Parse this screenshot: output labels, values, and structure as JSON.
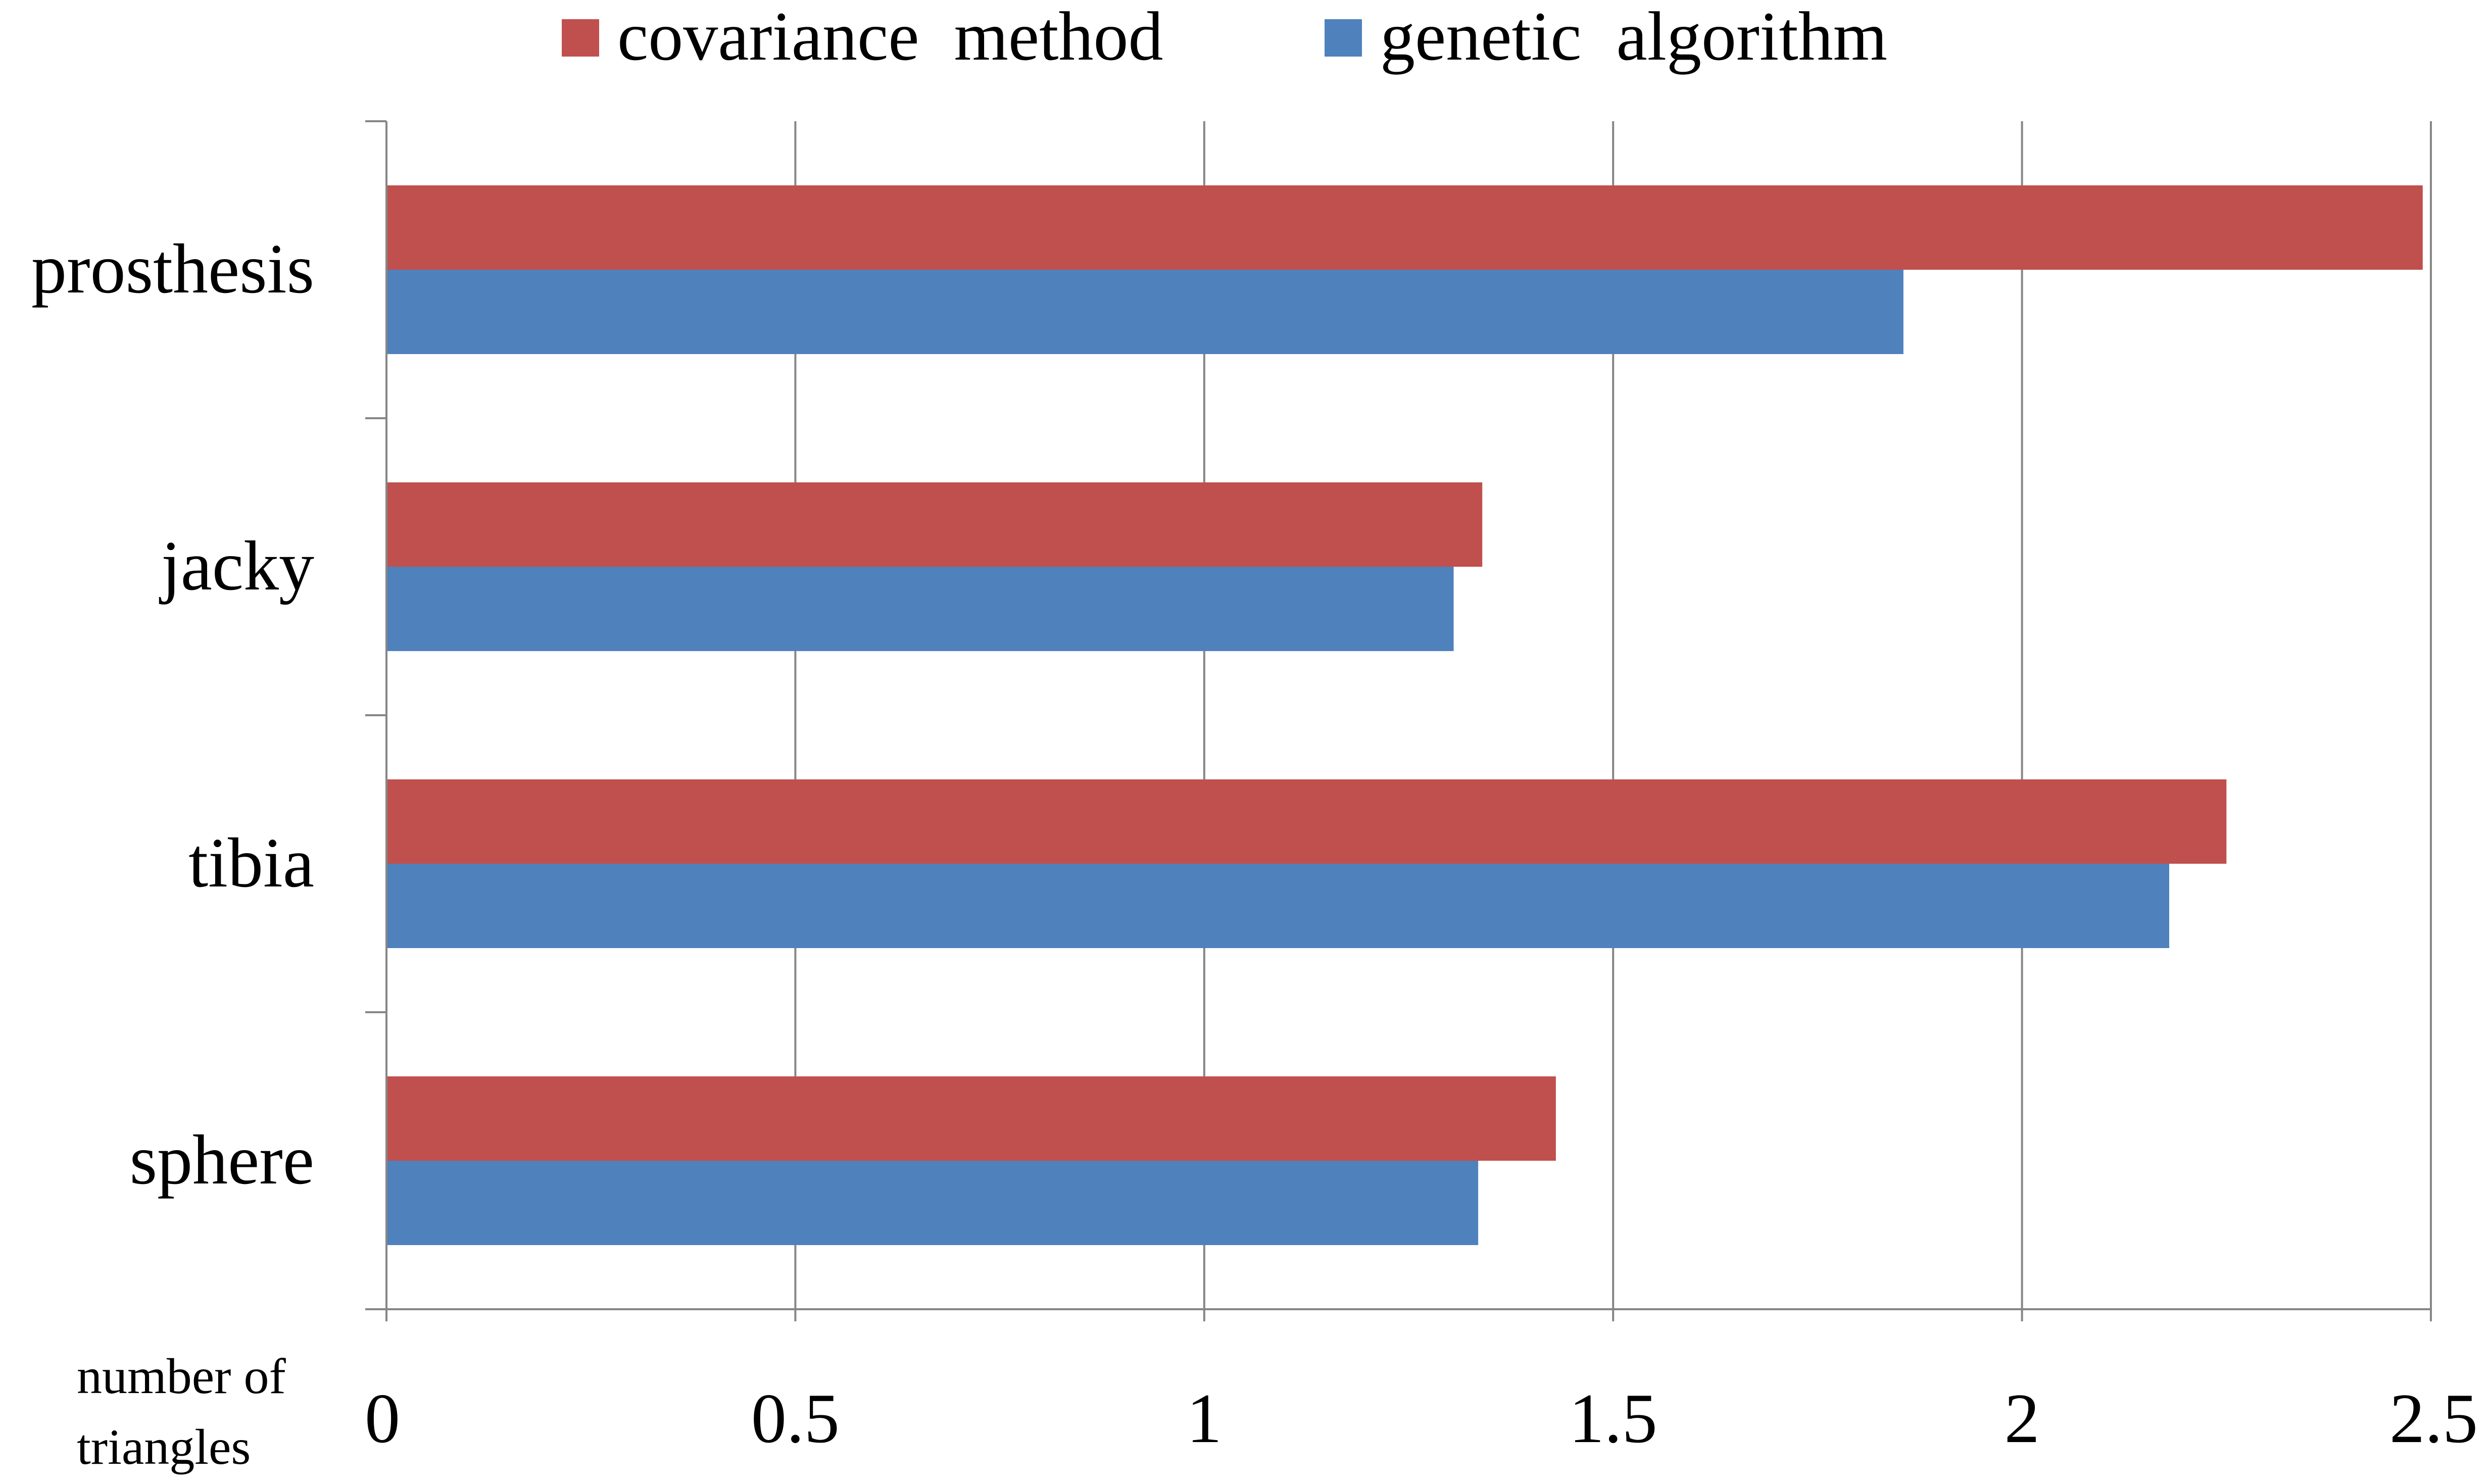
{
  "chart_data": {
    "type": "bar",
    "orientation": "horizontal",
    "categories": [
      "prosthesis",
      "jacky",
      "tibia",
      "sphere"
    ],
    "series": [
      {
        "name": "covariance  method",
        "color": "#C0504D",
        "values": [
          2.49,
          1.34,
          2.25,
          1.43
        ]
      },
      {
        "name": "genetic  algorithm",
        "color": "#4F81BD",
        "values": [
          1.855,
          1.305,
          2.18,
          1.335
        ]
      }
    ],
    "xlim": [
      0,
      2.5
    ],
    "xticks": [
      0,
      0.5,
      1,
      1.5,
      2,
      2.5
    ],
    "xtick_labels": [
      "0",
      "0.5",
      "1",
      "1.5",
      "2",
      "2.5"
    ],
    "xlabel_lines": [
      "number of",
      "triangles"
    ],
    "ylabel": "",
    "title": "",
    "grid": "vertical",
    "legend_position": "top"
  }
}
